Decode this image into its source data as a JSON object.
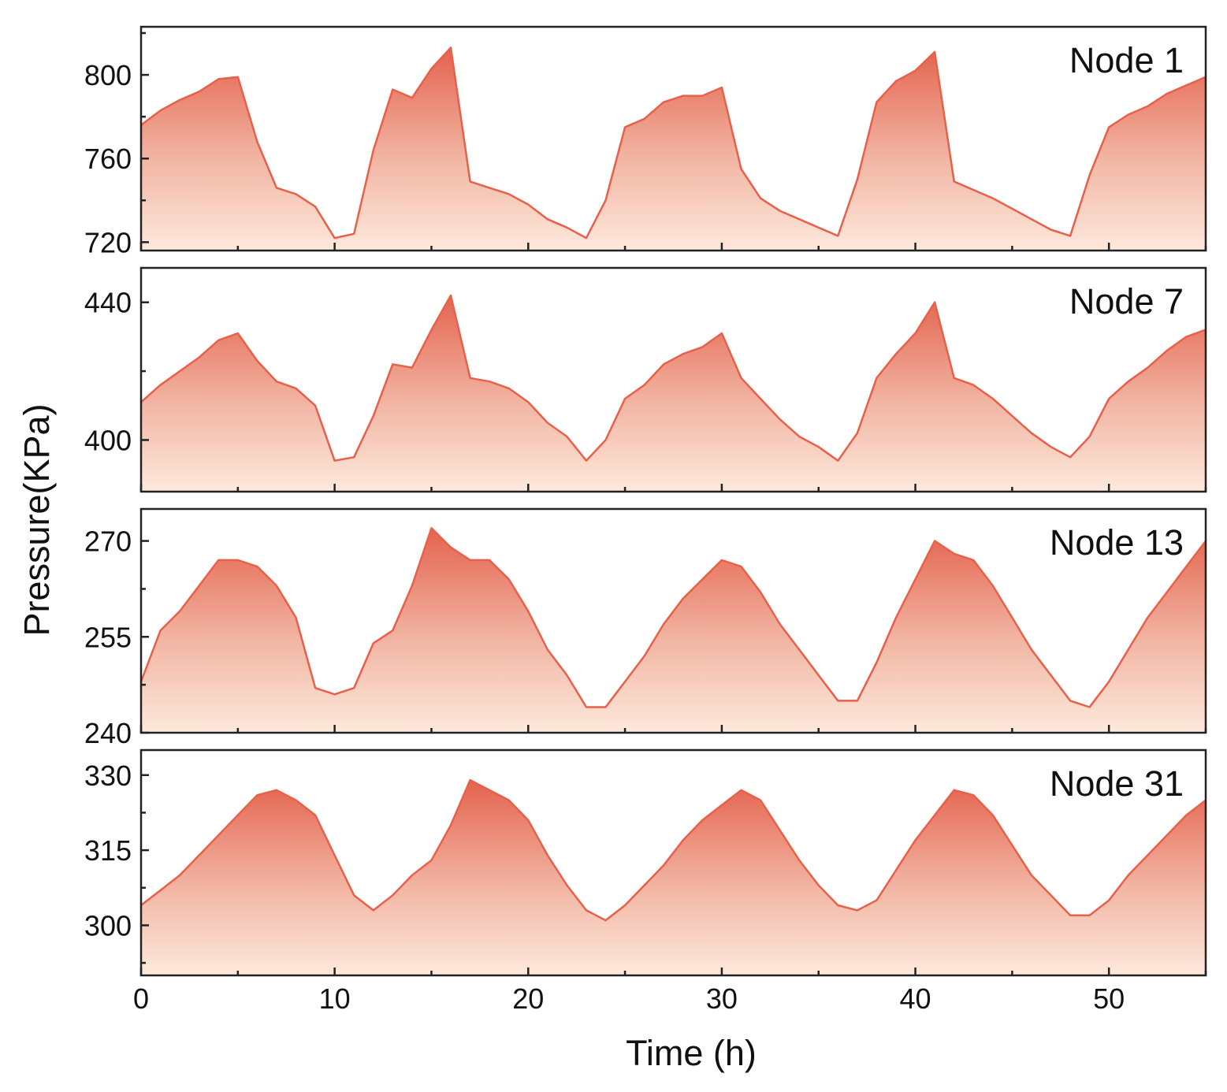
{
  "colors": {
    "line": "#e8604a",
    "fill_top": "#e3634e",
    "fill_bottom": "#fde9dc",
    "axis": "#222222"
  },
  "chart_data": {
    "type": "area",
    "xlabel": "Time (h)",
    "ylabel": "Pressure(KPa)",
    "xlim": [
      0,
      55
    ],
    "xticks": [
      0,
      10,
      20,
      30,
      40,
      50
    ],
    "x": [
      0,
      1,
      2,
      3,
      4,
      5,
      6,
      7,
      8,
      9,
      10,
      11,
      12,
      13,
      14,
      15,
      16,
      17,
      18,
      19,
      20,
      21,
      22,
      23,
      24,
      25,
      26,
      27,
      28,
      29,
      30,
      31,
      32,
      33,
      34,
      35,
      36,
      37,
      38,
      39,
      40,
      41,
      42,
      43,
      44,
      45,
      46,
      47,
      48,
      49,
      50,
      51,
      52,
      53,
      54,
      55
    ],
    "panels": [
      {
        "name": "Node 1",
        "label": "Node 1",
        "ylim": [
          716,
          823
        ],
        "yticks": [
          720,
          760,
          800
        ],
        "values": [
          776,
          783,
          788,
          792,
          798,
          799,
          768,
          746,
          743,
          737,
          722,
          724,
          764,
          793,
          789,
          803,
          813,
          749,
          746,
          743,
          738,
          731,
          727,
          722,
          740,
          775,
          779,
          787,
          790,
          790,
          794,
          755,
          741,
          735,
          731,
          727,
          723,
          750,
          787,
          797,
          802,
          811,
          749,
          745,
          741,
          736,
          731,
          726,
          723,
          752,
          775,
          781,
          785,
          791,
          795,
          799
        ]
      },
      {
        "name": "Node 7",
        "label": "Node 7",
        "ylim": [
          385,
          450
        ],
        "yticks": [
          400,
          440
        ],
        "values": [
          411,
          416,
          420,
          424,
          429,
          431,
          423,
          417,
          415,
          410,
          394,
          395,
          407,
          422,
          421,
          432,
          442,
          418,
          417,
          415,
          411,
          405,
          401,
          394,
          400,
          412,
          416,
          422,
          425,
          427,
          431,
          418,
          412,
          406,
          401,
          398,
          394,
          402,
          418,
          425,
          431,
          440,
          418,
          416,
          412,
          407,
          402,
          398,
          395,
          401,
          412,
          417,
          421,
          426,
          430,
          432
        ]
      },
      {
        "name": "Node 13",
        "label": "Node 13",
        "ylim": [
          240,
          275
        ],
        "yticks": [
          240,
          255,
          270
        ],
        "values": [
          248,
          256,
          259,
          263,
          267,
          267,
          266,
          263,
          258,
          247,
          246,
          247,
          254,
          256,
          263,
          272,
          269,
          267,
          267,
          264,
          259,
          253,
          249,
          244,
          244,
          248,
          252,
          257,
          261,
          264,
          267,
          266,
          262,
          257,
          253,
          249,
          245,
          245,
          251,
          258,
          264,
          270,
          268,
          267,
          263,
          258,
          253,
          249,
          245,
          244,
          248,
          253,
          258,
          262,
          266,
          270
        ]
      },
      {
        "name": "Node 31",
        "label": "Node 31",
        "ylim": [
          290,
          335
        ],
        "yticks": [
          300,
          315,
          330
        ],
        "values": [
          304,
          307,
          310,
          314,
          318,
          322,
          326,
          327,
          325,
          322,
          314,
          306,
          303,
          306,
          310,
          313,
          320,
          329,
          327,
          325,
          321,
          314,
          308,
          303,
          301,
          304,
          308,
          312,
          317,
          321,
          324,
          327,
          325,
          319,
          313,
          308,
          304,
          303,
          305,
          311,
          317,
          322,
          327,
          326,
          322,
          316,
          310,
          306,
          302,
          302,
          305,
          310,
          314,
          318,
          322,
          325
        ]
      }
    ]
  }
}
